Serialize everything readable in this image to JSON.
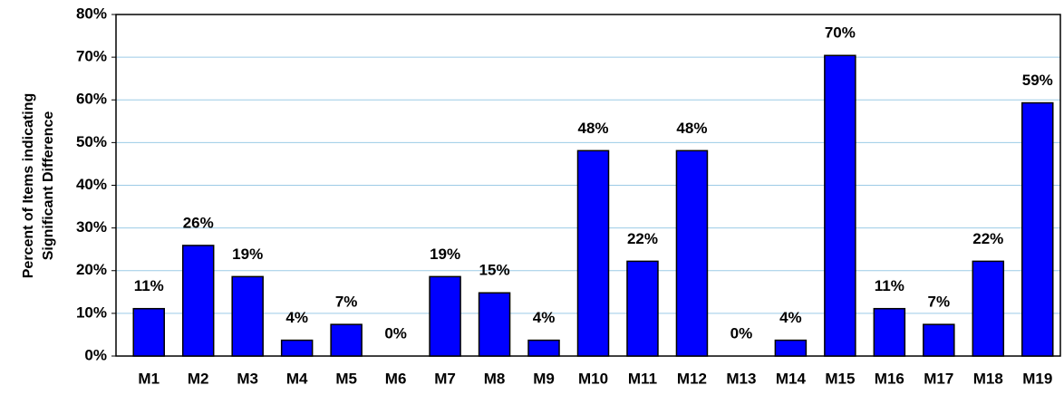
{
  "chart_data": {
    "type": "bar",
    "ylabel": [
      "Percent of Items indicating",
      "Significant Difference"
    ],
    "categories": [
      "M1",
      "M2",
      "M3",
      "M4",
      "M5",
      "M6",
      "M7",
      "M8",
      "M9",
      "M10",
      "M11",
      "M12",
      "M13",
      "M14",
      "M15",
      "M16",
      "M17",
      "M18",
      "M19"
    ],
    "values": [
      11.1,
      25.9,
      18.6,
      3.7,
      7.4,
      0,
      18.6,
      14.8,
      3.7,
      48.1,
      22.2,
      48.1,
      0,
      3.7,
      70.4,
      11.1,
      7.4,
      22.2,
      59.3
    ],
    "value_labels": [
      "11%",
      "26%",
      "19%",
      "4%",
      "7%",
      "0%",
      "19%",
      "15%",
      "4%",
      "48%",
      "22%",
      "48%",
      "0%",
      "4%",
      "70%",
      "11%",
      "7%",
      "22%",
      "59%"
    ],
    "color": "#0000ff",
    "ylim": [
      0,
      80
    ],
    "yticks": [
      {
        "value": 0,
        "label": "0%"
      },
      {
        "value": 10,
        "label": "10%"
      },
      {
        "value": 20,
        "label": "20%"
      },
      {
        "value": 30,
        "label": "30%"
      },
      {
        "value": 40,
        "label": "40%"
      },
      {
        "value": 50,
        "label": "50%"
      },
      {
        "value": 60,
        "label": "60%"
      },
      {
        "value": 70,
        "label": "70%"
      },
      {
        "value": 80,
        "label": "80%"
      }
    ],
    "grid": true
  }
}
